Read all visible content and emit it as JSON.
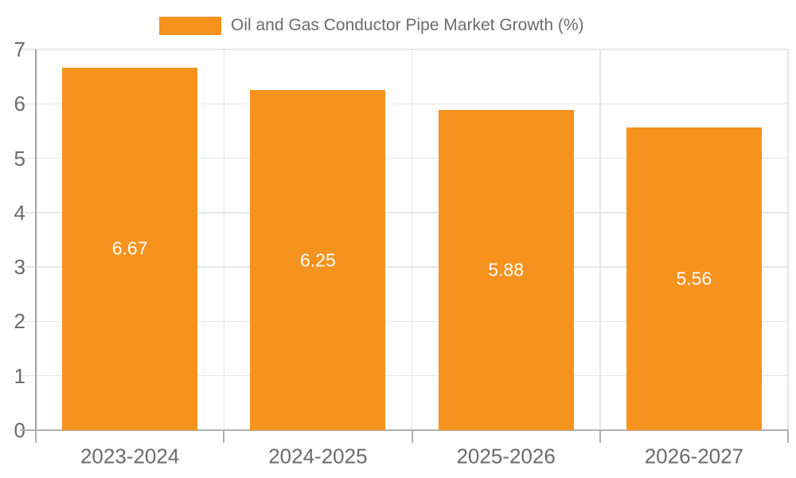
{
  "chart_data": {
    "type": "bar",
    "title": "Oil and Gas Conductor Pipe Market Growth (%)",
    "categories": [
      "2023-2024",
      "2024-2025",
      "2025-2026",
      "2026-2027"
    ],
    "values": [
      6.67,
      6.25,
      5.88,
      5.56
    ],
    "value_labels": [
      "6.67",
      "6.25",
      "5.88",
      "5.56"
    ],
    "xlabel": "",
    "ylabel": "",
    "ylim": [
      0,
      7
    ],
    "ytick_step": 1,
    "ytick_labels": [
      "0",
      "1",
      "2",
      "3",
      "4",
      "5",
      "6",
      "7"
    ],
    "grid": true,
    "legend_position": "top",
    "bar_color": "#F6921E",
    "data_label_color": "#FFFFFF",
    "axis_text_color": "#6B6B6B"
  }
}
